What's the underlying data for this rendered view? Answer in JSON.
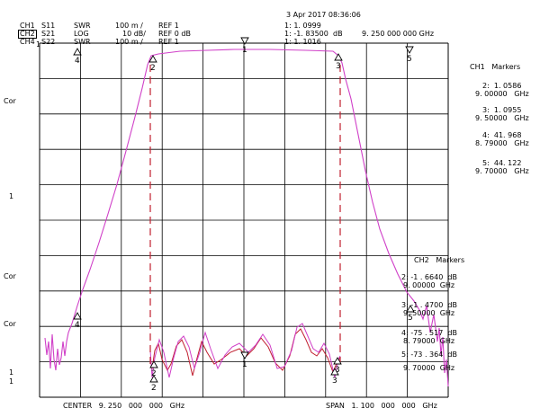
{
  "header": {
    "datetime": "3 Apr 2017  08:36:06",
    "channels": [
      {
        "ch": "CH1",
        "param": "S11",
        "format": "SWR",
        "scale": "100 m /",
        "ref": "REF 1",
        "marker_value": "1:  1. 0999",
        "boxed": false
      },
      {
        "ch": "CH2",
        "param": "S21",
        "format": "LOG",
        "scale": "10 dB/",
        "ref": "REF 0 dB",
        "marker_value": "1: -1. 83500",
        "marker_unit": "dB",
        "boxed": true
      },
      {
        "ch": "CH4",
        "param": "S22",
        "format": "SWR",
        "scale": "100 m /",
        "ref": "REF 1",
        "marker_value": "1:  1. 1016",
        "boxed": false
      }
    ],
    "marker_freq": "9. 250  000  000   GHz"
  },
  "left_labels": [
    "Cor",
    "1",
    "Cor",
    "Cor",
    "1",
    "1"
  ],
  "left_top": "1",
  "ch1_markers": {
    "title": "CH1   Markers",
    "items": [
      {
        "value": "2:  1. 0586",
        "freq": "9. 00000   GHz"
      },
      {
        "value": "3:  1. 0955",
        "freq": "9. 50000   GHz"
      },
      {
        "value": "4:  41. 968",
        "freq": "8. 79000   GHz"
      },
      {
        "value": "5:  44. 122",
        "freq": "9. 70000   GHz"
      }
    ]
  },
  "ch2_markers": {
    "title": "CH2   Markers",
    "items": [
      {
        "value": "2: -1 . 6640  dB",
        "freq": "9. 00000  GHz"
      },
      {
        "value": "3: -1 . 4700  dB",
        "freq": "9. 50000  GHz"
      },
      {
        "value": "4: -75 . 517  dB",
        "freq": "8. 79000  GHz"
      },
      {
        "value": "5: -73 . 364  dB",
        "freq": "9. 70000  GHz"
      }
    ]
  },
  "footer": {
    "center": "CENTER   9. 250   000   000   GHz",
    "span": "SPAN   1. 100   000   000   GHz"
  },
  "marker_ids": {
    "m1": "1",
    "m2": "2",
    "m3": "3",
    "m4": "4",
    "m5": "5"
  },
  "colors": {
    "trace_s21": "#d040c8",
    "trace_s11": "#c02030",
    "grid": "#000000"
  }
}
